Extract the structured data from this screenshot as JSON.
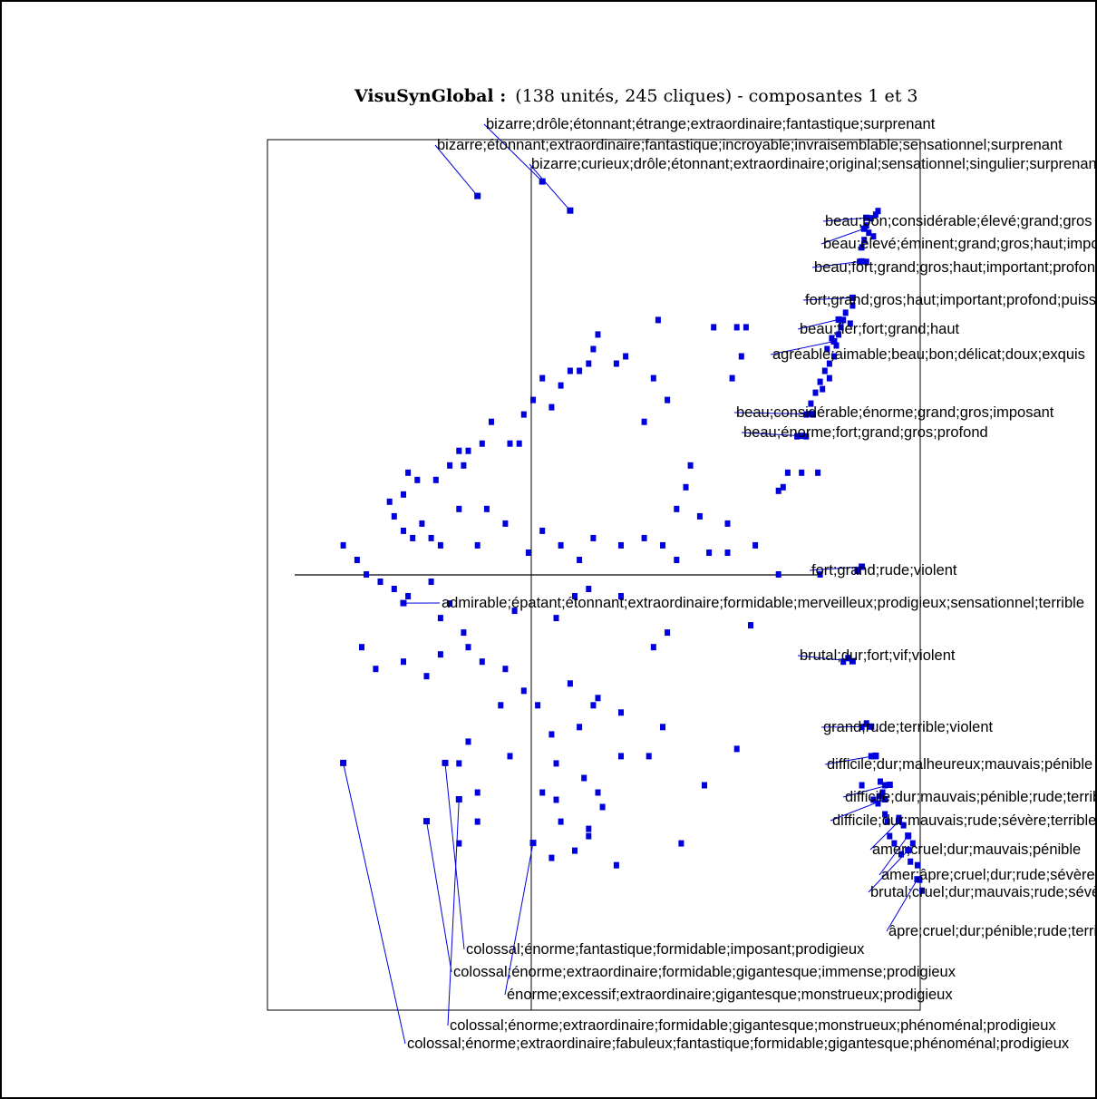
{
  "colors": {
    "point": "#0000dd",
    "leader": "#0000dd",
    "frame": "#000000",
    "axis": "#000000",
    "text": "#000000"
  },
  "chart_data": {
    "type": "scatter",
    "title": "VisuSynGlobal :",
    "subtitle": "(138 unités, 245 cliques) - composantes 1 et 3",
    "xlabel": "",
    "ylabel": "",
    "grid": false,
    "xlim": [
      -7.0,
      7.0
    ],
    "ylim": [
      -6.0,
      6.0
    ],
    "zero_line_x": -2.0,
    "zero_line_y": 0.0,
    "labeled_points": [
      {
        "x": -1.2,
        "y": 5.4,
        "label": "bizarre;drôle;étonnant;étrange;extraordinaire;fantastique;surprenant"
      },
      {
        "x": -2.6,
        "y": 5.2,
        "label": "bizarre;étonnant;extraordinaire;fantastique;incroyable;invraisemblable;sensationnel;surprenant"
      },
      {
        "x": -0.6,
        "y": 5.0,
        "label": "bizarre;curieux;drôle;étonnant;extraordinaire;original;sensationnel;singulier;surprenant"
      },
      {
        "x": 5.8,
        "y": 4.9,
        "label": "beau;bon;considérable;élevé;grand;gros"
      },
      {
        "x": 5.75,
        "y": 4.75,
        "label": "beau;élevé;éminent;grand;gros;haut;important"
      },
      {
        "x": 5.7,
        "y": 4.3,
        "label": "beau;fort;grand;gros;haut;important;profond"
      },
      {
        "x": 5.5,
        "y": 3.8,
        "label": "fort;grand;gros;haut;important;profond;puissant"
      },
      {
        "x": 5.2,
        "y": 3.5,
        "label": "beau;fier;fort;grand;haut"
      },
      {
        "x": 5.1,
        "y": 3.2,
        "label": "agréable;aimable;beau;bon;délicat;doux;exquis"
      },
      {
        "x": 4.6,
        "y": 2.2,
        "label": "beau;considérable;énorme;grand;gros;imposant"
      },
      {
        "x": 4.4,
        "y": 1.9,
        "label": "beau;énorme;fort;grand;gros;profond"
      },
      {
        "x": 5.7,
        "y": 0.1,
        "label": "fort;grand;rude;violent"
      },
      {
        "x": -4.2,
        "y": -0.4,
        "label": "admirable;épatant;étonnant;extraordinaire;formidable;merveilleux;prodigieux;sensationnel;terrible"
      },
      {
        "x": 5.5,
        "y": -1.2,
        "label": "brutal;dur;fort;vif;violent"
      },
      {
        "x": 5.9,
        "y": -2.1,
        "label": "grand;rude;terrible;violent"
      },
      {
        "x": 6.0,
        "y": -2.5,
        "label": "difficile;dur;malheureux;mauvais;pénible"
      },
      {
        "x": 6.3,
        "y": -2.9,
        "label": "difficile;dur;mauvais;pénible;rude;terrible"
      },
      {
        "x": 6.2,
        "y": -3.1,
        "label": "difficile;dur;mauvais;rude;sévère;terrible"
      },
      {
        "x": 6.5,
        "y": -3.4,
        "label": "amer;cruel;dur;mauvais;pénible"
      },
      {
        "x": 6.7,
        "y": -3.6,
        "label": "amer;âpre;cruel;dur;rude;sévère"
      },
      {
        "x": 6.7,
        "y": -3.8,
        "label": "brutal;cruel;dur;mauvais;rude;sévère"
      },
      {
        "x": 6.9,
        "y": -4.2,
        "label": "âpre;cruel;dur;pénible;rude;terrible"
      },
      {
        "x": -3.3,
        "y": -2.6,
        "label": "colossal;énorme;fantastique;formidable;imposant;prodigieux"
      },
      {
        "x": -3.7,
        "y": -3.4,
        "label": "colossal;énorme;extraordinaire;formidable;gigantesque;immense;prodigieux"
      },
      {
        "x": -1.4,
        "y": -3.7,
        "label": "énorme;excessif;extraordinaire;gigantesque;monstrueux;prodigieux"
      },
      {
        "x": -3.0,
        "y": -3.1,
        "label": "colossal;énorme;extraordinaire;formidable;gigantesque;monstrueux;phénoménal;prodigieux"
      },
      {
        "x": -5.5,
        "y": -2.6,
        "label": "colossal;énorme;extraordinaire;fabuleux;fantastique;formidable;gigantesque;phénoménal;prodigieux"
      }
    ],
    "points": [
      [
        5.8,
        4.8
      ],
      [
        5.9,
        4.9
      ],
      [
        5.75,
        4.6
      ],
      [
        5.85,
        4.7
      ],
      [
        6.0,
        4.95
      ],
      [
        5.7,
        4.5
      ],
      [
        5.65,
        4.3
      ],
      [
        5.8,
        4.3
      ],
      [
        6.05,
        5.0
      ],
      [
        5.95,
        4.65
      ],
      [
        5.5,
        3.7
      ],
      [
        5.35,
        3.6
      ],
      [
        5.3,
        3.5
      ],
      [
        5.2,
        3.3
      ],
      [
        5.15,
        3.15
      ],
      [
        5.1,
        3.0
      ],
      [
        5.0,
        2.9
      ],
      [
        4.9,
        2.8
      ],
      [
        4.8,
        2.65
      ],
      [
        4.7,
        2.5
      ],
      [
        4.6,
        2.35
      ],
      [
        4.5,
        2.2
      ],
      [
        4.95,
        3.1
      ],
      [
        5.05,
        3.25
      ],
      [
        5.25,
        3.4
      ],
      [
        5.45,
        3.45
      ],
      [
        5.0,
        2.7
      ],
      [
        4.85,
        2.55
      ],
      [
        4.65,
        2.2
      ],
      [
        4.3,
        1.9
      ],
      [
        4.5,
        1.9
      ],
      [
        4.1,
        1.4
      ],
      [
        4.0,
        1.2
      ],
      [
        4.4,
        1.4
      ],
      [
        4.75,
        1.4
      ],
      [
        3.9,
        1.15
      ],
      [
        2.5,
        3.4
      ],
      [
        3.0,
        3.4
      ],
      [
        3.2,
        3.4
      ],
      [
        3.1,
        3.0
      ],
      [
        2.9,
        2.7
      ],
      [
        1.3,
        3.5
      ],
      [
        0.6,
        3.0
      ],
      [
        0.4,
        2.9
      ],
      [
        1.2,
        2.7
      ],
      [
        1.5,
        2.4
      ],
      [
        1.0,
        2.1
      ],
      [
        2.0,
        1.5
      ],
      [
        1.9,
        1.2
      ],
      [
        2.2,
        0.8
      ],
      [
        2.8,
        0.7
      ],
      [
        1.7,
        0.9
      ],
      [
        3.4,
        0.4
      ],
      [
        0.0,
        3.3
      ],
      [
        -0.1,
        3.1
      ],
      [
        -0.2,
        2.9
      ],
      [
        -0.6,
        2.8
      ],
      [
        -1.2,
        2.7
      ],
      [
        -0.8,
        2.6
      ],
      [
        -0.4,
        2.8
      ],
      [
        -1.0,
        2.3
      ],
      [
        -1.4,
        2.4
      ],
      [
        -1.6,
        2.2
      ],
      [
        -1.9,
        1.8
      ],
      [
        -1.7,
        1.8
      ],
      [
        -2.3,
        2.1
      ],
      [
        -2.5,
        1.8
      ],
      [
        -2.8,
        1.7
      ],
      [
        -3.0,
        1.7
      ],
      [
        -2.9,
        1.5
      ],
      [
        -3.2,
        1.5
      ],
      [
        -3.5,
        1.3
      ],
      [
        -3.9,
        1.3
      ],
      [
        -4.1,
        1.4
      ],
      [
        -4.2,
        1.1
      ],
      [
        -4.5,
        1.0
      ],
      [
        -4.4,
        0.8
      ],
      [
        -4.2,
        0.6
      ],
      [
        -4.0,
        0.5
      ],
      [
        -3.8,
        0.7
      ],
      [
        -3.6,
        0.5
      ],
      [
        -3.4,
        0.4
      ],
      [
        -3.0,
        0.9
      ],
      [
        -2.4,
        0.9
      ],
      [
        -2.0,
        0.7
      ],
      [
        -2.6,
        0.4
      ],
      [
        -1.5,
        0.3
      ],
      [
        -1.2,
        0.6
      ],
      [
        -0.8,
        0.4
      ],
      [
        -0.4,
        0.2
      ],
      [
        -0.1,
        0.5
      ],
      [
        0.5,
        0.4
      ],
      [
        1.0,
        0.5
      ],
      [
        1.4,
        0.4
      ],
      [
        1.7,
        0.2
      ],
      [
        2.4,
        0.3
      ],
      [
        2.8,
        0.3
      ],
      [
        3.9,
        0.0
      ],
      [
        4.8,
        0.0
      ],
      [
        5.6,
        0.05
      ],
      [
        -5.5,
        0.4
      ],
      [
        -5.2,
        0.2
      ],
      [
        -5.0,
        0.0
      ],
      [
        -4.7,
        -0.1
      ],
      [
        -4.4,
        -0.2
      ],
      [
        -4.1,
        -0.3
      ],
      [
        -3.6,
        -0.1
      ],
      [
        -3.2,
        -0.4
      ],
      [
        -3.4,
        -0.6
      ],
      [
        -2.9,
        -0.8
      ],
      [
        -1.8,
        -0.5
      ],
      [
        -0.9,
        -0.6
      ],
      [
        -0.5,
        -0.3
      ],
      [
        -0.2,
        -0.2
      ],
      [
        0.5,
        -0.3
      ],
      [
        1.5,
        -0.8
      ],
      [
        1.2,
        -1.0
      ],
      [
        3.3,
        -0.7
      ],
      [
        5.3,
        -1.2
      ],
      [
        -5.1,
        -1.0
      ],
      [
        -4.8,
        -1.3
      ],
      [
        -4.2,
        -1.2
      ],
      [
        -3.7,
        -1.4
      ],
      [
        -3.4,
        -1.1
      ],
      [
        -2.8,
        -1.0
      ],
      [
        -2.5,
        -1.2
      ],
      [
        -2.0,
        -1.3
      ],
      [
        -1.6,
        -1.6
      ],
      [
        -2.1,
        -1.8
      ],
      [
        -1.3,
        -1.8
      ],
      [
        -0.6,
        -1.5
      ],
      [
        0.0,
        -1.7
      ],
      [
        0.5,
        -1.9
      ],
      [
        1.4,
        -2.1
      ],
      [
        3.0,
        -2.4
      ],
      [
        -1.0,
        -2.2
      ],
      [
        -0.4,
        -2.1
      ],
      [
        -0.1,
        -1.8
      ],
      [
        -2.8,
        -2.3
      ],
      [
        -3.0,
        -2.6
      ],
      [
        -1.9,
        -2.5
      ],
      [
        -0.9,
        -2.6
      ],
      [
        -1.2,
        -3.0
      ],
      [
        -0.3,
        -2.8
      ],
      [
        0.5,
        -2.5
      ],
      [
        1.1,
        -2.5
      ],
      [
        2.3,
        -2.9
      ],
      [
        -2.6,
        -3.0
      ],
      [
        -0.8,
        -3.4
      ],
      [
        0.1,
        -3.2
      ],
      [
        0.0,
        -3.0
      ],
      [
        -3.0,
        -3.7
      ],
      [
        -2.6,
        -3.4
      ],
      [
        -0.9,
        -3.1
      ],
      [
        -0.5,
        -3.8
      ],
      [
        -0.2,
        -3.6
      ],
      [
        0.4,
        -4.0
      ],
      [
        -1.0,
        -3.9
      ],
      [
        -0.2,
        -3.5
      ],
      [
        1.8,
        -3.7
      ],
      [
        5.4,
        -1.15
      ],
      [
        5.7,
        -2.1
      ],
      [
        5.8,
        -2.05
      ],
      [
        5.9,
        -2.5
      ],
      [
        6.0,
        -2.5
      ],
      [
        5.7,
        -2.9
      ],
      [
        6.1,
        -2.85
      ],
      [
        6.2,
        -2.9
      ],
      [
        6.15,
        -3.0
      ],
      [
        5.95,
        -3.1
      ],
      [
        6.05,
        -3.15
      ],
      [
        6.1,
        -3.05
      ],
      [
        6.2,
        -3.3
      ],
      [
        6.25,
        -3.4
      ],
      [
        6.5,
        -3.35
      ],
      [
        6.6,
        -3.45
      ],
      [
        6.3,
        -3.6
      ],
      [
        6.4,
        -3.7
      ],
      [
        6.7,
        -3.6
      ],
      [
        6.8,
        -3.7
      ],
      [
        6.55,
        -3.85
      ],
      [
        6.75,
        -3.95
      ],
      [
        6.9,
        -4.0
      ],
      [
        6.95,
        -4.2
      ],
      [
        7.0,
        -4.35
      ]
    ]
  }
}
